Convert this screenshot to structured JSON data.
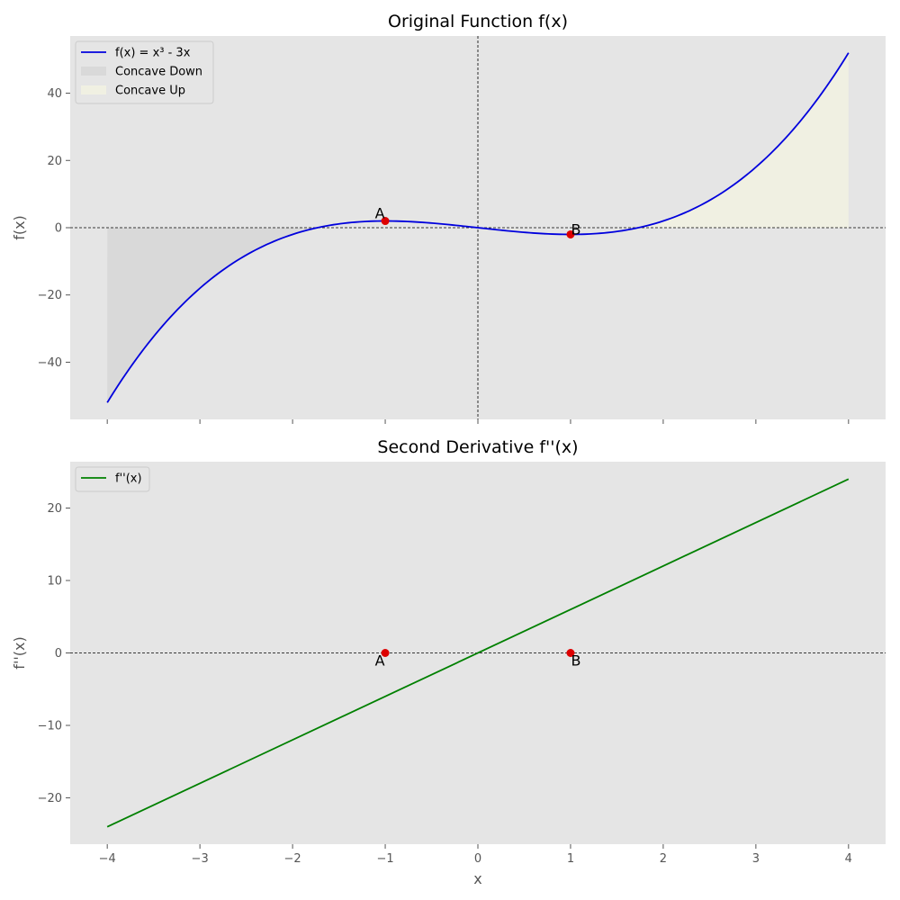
{
  "chart_data": [
    {
      "type": "line",
      "title": "Original Function f(x)",
      "xlabel": "",
      "ylabel": "f(x)",
      "xlim": [
        -4.4,
        4.4
      ],
      "ylim": [
        -57,
        57
      ],
      "x_ticks": [
        -4,
        -3,
        -2,
        -1,
        0,
        1,
        2,
        3,
        4
      ],
      "y_ticks": [
        -40,
        -20,
        0,
        20,
        40
      ],
      "x_ticklabels_shown": false,
      "background": "#e5e5e5",
      "grid": false,
      "legend": "upper-left",
      "reference_lines": {
        "y": 0,
        "x": 0,
        "style": "dashed",
        "color": "#000000"
      },
      "series": [
        {
          "name": "f(x) = x³ - 3x",
          "color": "#0000dd",
          "x": [
            -4,
            -3.5,
            -3,
            -2.5,
            -2,
            -1.732,
            -1.5,
            -1,
            -0.5,
            0,
            0.5,
            1,
            1.5,
            1.732,
            2,
            2.5,
            3,
            3.5,
            4
          ],
          "y": [
            -52,
            -32.375,
            -18,
            -8.125,
            -2,
            0,
            1.125,
            2,
            1.375,
            0,
            -1.375,
            -2,
            -1.125,
            0,
            2,
            8.125,
            18,
            32.375,
            52
          ]
        }
      ],
      "shaded_regions": [
        {
          "name": "Concave Down",
          "color": "#d9d9d9",
          "x_from": -4,
          "x_to": 0,
          "condition": "f(x) < 0"
        },
        {
          "name": "Concave Up",
          "color": "#f0f0e2",
          "x_from": 0,
          "x_to": 4,
          "condition": "f(x) > 0"
        }
      ],
      "points": [
        {
          "label": "A",
          "x": -1,
          "y": 2,
          "color": "#dd0000",
          "label_side": "above-left"
        },
        {
          "label": "B",
          "x": 1,
          "y": -2,
          "color": "#dd0000",
          "label_side": "above-right"
        }
      ]
    },
    {
      "type": "line",
      "title": "Second Derivative f''(x)",
      "xlabel": "x",
      "ylabel": "f''(x)",
      "xlim": [
        -4.4,
        4.4
      ],
      "ylim": [
        -26.4,
        26.4
      ],
      "x_ticks": [
        -4,
        -3,
        -2,
        -1,
        0,
        1,
        2,
        3,
        4
      ],
      "y_ticks": [
        -20,
        -10,
        0,
        10,
        20
      ],
      "x_ticklabels_shown": true,
      "background": "#e5e5e5",
      "grid": false,
      "legend": "upper-left",
      "reference_lines": {
        "y": 0,
        "style": "dashed",
        "color": "#000000"
      },
      "series": [
        {
          "name": "f''(x)",
          "color": "#008000",
          "x": [
            -4,
            4
          ],
          "y": [
            -24,
            24
          ]
        }
      ],
      "points": [
        {
          "label": "A",
          "x": -1,
          "y": 0,
          "color": "#dd0000",
          "label_side": "below-left"
        },
        {
          "label": "B",
          "x": 1,
          "y": 0,
          "color": "#dd0000",
          "label_side": "below-right"
        }
      ]
    }
  ]
}
